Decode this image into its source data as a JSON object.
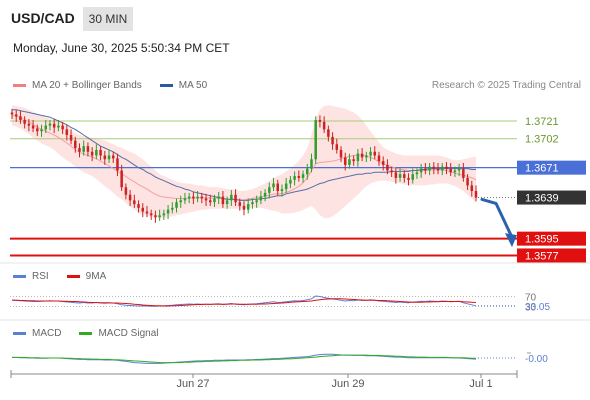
{
  "header": {
    "symbol": "USD/CAD",
    "timeframe": "30 MIN",
    "datetime": "Monday, June 30, 2025 5:50:34 PM CET"
  },
  "legends": {
    "price": [
      {
        "name": "MA 20 + Bollinger Bands",
        "color": "#f08080"
      },
      {
        "name": "MA 50",
        "color": "#2c5aa0"
      }
    ],
    "rsi": [
      {
        "name": "RSI",
        "color": "#5b7fd6"
      },
      {
        "name": "9MA",
        "color": "#dd1111"
      }
    ],
    "macd": [
      {
        "name": "MACD",
        "color": "#5b7fd6"
      },
      {
        "name": "MACD Signal",
        "color": "#33aa22"
      }
    ]
  },
  "credit": "Research © 2025 Trading Central",
  "colors": {
    "up": "#2e9e2e",
    "down": "#cc2222",
    "bollinger_fill": "#fde0de",
    "ma50": "#5570a8",
    "resistance": "#a8cc7a",
    "pivot": "#4a6fd6",
    "support": "#e01010",
    "current_label_bg": "#333333",
    "arrow": "#2a62b0"
  },
  "chart_data": [
    {
      "type": "candlestick",
      "title": "USD/CAD",
      "x_ticks": [
        "Jun 27",
        "Jun 29",
        "Jul 1"
      ],
      "ylim": [
        1.357,
        1.3752
      ],
      "levels": [
        {
          "value": 1.3721,
          "label": "1.3721",
          "kind": "resistance"
        },
        {
          "value": 1.3702,
          "label": "1.3702",
          "kind": "resistance"
        },
        {
          "value": 1.3671,
          "label": "1.3671",
          "kind": "pivot"
        },
        {
          "value": 1.3639,
          "label": "1.3639",
          "kind": "current"
        },
        {
          "value": 1.3595,
          "label": "1.3595",
          "kind": "support"
        },
        {
          "value": 1.3577,
          "label": "1.3577",
          "kind": "support"
        }
      ],
      "forecast_arrow": {
        "from": 1.3637,
        "to": 1.3588
      },
      "close": [
        1.3728,
        1.3726,
        1.3722,
        1.3718,
        1.3716,
        1.3713,
        1.371,
        1.3712,
        1.3716,
        1.3718,
        1.3714,
        1.3716,
        1.3712,
        1.3706,
        1.37,
        1.3692,
        1.3688,
        1.3694,
        1.3688,
        1.3684,
        1.369,
        1.3684,
        1.368,
        1.3684,
        1.3681,
        1.3668,
        1.365,
        1.3642,
        1.3636,
        1.3632,
        1.3628,
        1.3624,
        1.3622,
        1.362,
        1.3618,
        1.362,
        1.3622,
        1.3626,
        1.3628,
        1.3634,
        1.3636,
        1.3638,
        1.364,
        1.3638,
        1.364,
        1.3638,
        1.3636,
        1.3634,
        1.3638,
        1.364,
        1.3632,
        1.3636,
        1.3642,
        1.3634,
        1.363,
        1.3626,
        1.3632,
        1.3634,
        1.3636,
        1.364,
        1.3644,
        1.365,
        1.3654,
        1.3646,
        1.3648,
        1.3654,
        1.3658,
        1.3662,
        1.366,
        1.3664,
        1.367,
        1.368,
        1.3722,
        1.372,
        1.3712,
        1.3704,
        1.3696,
        1.369,
        1.3682,
        1.3674,
        1.368,
        1.3678,
        1.3686,
        1.3682,
        1.3684,
        1.3688,
        1.3684,
        1.3678,
        1.3674,
        1.3668,
        1.3666,
        1.366,
        1.3664,
        1.366,
        1.3658,
        1.3664,
        1.3666,
        1.367,
        1.3668,
        1.3672,
        1.367,
        1.3668,
        1.3672,
        1.367,
        1.3666,
        1.3668,
        1.367,
        1.366,
        1.3652,
        1.3646,
        1.3639
      ],
      "bollinger_upper": [
        1.3738,
        1.3737,
        1.3736,
        1.3735,
        1.3733,
        1.3731,
        1.3729,
        1.3727,
        1.3725,
        1.3723,
        1.3722,
        1.3721,
        1.3719,
        1.3716,
        1.3712,
        1.3708,
        1.3706,
        1.3705,
        1.3704,
        1.3703,
        1.3702,
        1.3701,
        1.37,
        1.3698,
        1.3696,
        1.3694,
        1.3692,
        1.369,
        1.3688,
        1.3686,
        1.3683,
        1.368,
        1.3676,
        1.3672,
        1.3668,
        1.3664,
        1.3662,
        1.366,
        1.3658,
        1.3656,
        1.3655,
        1.3654,
        1.3654,
        1.3653,
        1.3652,
        1.3652,
        1.3651,
        1.365,
        1.365,
        1.365,
        1.3649,
        1.3648,
        1.3648,
        1.3647,
        1.3646,
        1.3646,
        1.3647,
        1.3648,
        1.365,
        1.3652,
        1.3654,
        1.3657,
        1.366,
        1.3662,
        1.3664,
        1.3667,
        1.367,
        1.3674,
        1.3678,
        1.3684,
        1.3692,
        1.3706,
        1.3724,
        1.3733,
        1.3737,
        1.3738,
        1.3737,
        1.3736,
        1.3735,
        1.3734,
        1.3732,
        1.373,
        1.3727,
        1.3722,
        1.3716,
        1.371,
        1.3704,
        1.3698,
        1.3693,
        1.369,
        1.3688,
        1.3686,
        1.3685,
        1.3684,
        1.3684,
        1.3684,
        1.3684,
        1.3684,
        1.3684,
        1.3684,
        1.3684,
        1.3684,
        1.3683,
        1.3682,
        1.368,
        1.3679,
        1.3679,
        1.368,
        1.3681,
        1.3682,
        1.3683
      ],
      "bollinger_lower": [
        1.3716,
        1.3715,
        1.3713,
        1.371,
        1.3707,
        1.3703,
        1.37,
        1.3697,
        1.3695,
        1.3693,
        1.369,
        1.3686,
        1.3682,
        1.3679,
        1.3676,
        1.3672,
        1.3669,
        1.3666,
        1.3664,
        1.3662,
        1.3659,
        1.3655,
        1.3651,
        1.3648,
        1.3644,
        1.364,
        1.3637,
        1.3633,
        1.3629,
        1.3626,
        1.3623,
        1.3621,
        1.362,
        1.3618,
        1.3617,
        1.3617,
        1.3617,
        1.3618,
        1.3619,
        1.362,
        1.3621,
        1.3622,
        1.3623,
        1.3624,
        1.3625,
        1.3626,
        1.3626,
        1.3627,
        1.3627,
        1.3627,
        1.3627,
        1.3627,
        1.3627,
        1.3627,
        1.3627,
        1.3627,
        1.3628,
        1.3628,
        1.3628,
        1.3628,
        1.3627,
        1.3626,
        1.3625,
        1.3624,
        1.3622,
        1.3622,
        1.3622,
        1.3623,
        1.3624,
        1.3626,
        1.3628,
        1.363,
        1.3626,
        1.362,
        1.3617,
        1.3617,
        1.3619,
        1.3622,
        1.3626,
        1.363,
        1.3634,
        1.3638,
        1.3642,
        1.3647,
        1.3651,
        1.3654,
        1.3656,
        1.3657,
        1.3657,
        1.3657,
        1.3656,
        1.3655,
        1.3654,
        1.3653,
        1.3652,
        1.3652,
        1.3652,
        1.3652,
        1.3652,
        1.3653,
        1.3653,
        1.3654,
        1.3654,
        1.3654,
        1.3653,
        1.3651,
        1.3649,
        1.3646,
        1.3642,
        1.3638,
        1.3633
      ],
      "ma50": [
        1.3733,
        1.3733,
        1.3732,
        1.3731,
        1.373,
        1.3729,
        1.3728,
        1.3727,
        1.3726,
        1.3725,
        1.3723,
        1.3721,
        1.3719,
        1.3717,
        1.3714,
        1.3712,
        1.3709,
        1.3706,
        1.3703,
        1.37,
        1.3697,
        1.3694,
        1.3692,
        1.369,
        1.3688,
        1.3685,
        1.3682,
        1.368,
        1.3677,
        1.3674,
        1.3671,
        1.3669,
        1.3666,
        1.3664,
        1.3661,
        1.3659,
        1.3657,
        1.3655,
        1.3653,
        1.3651,
        1.365,
        1.3648,
        1.3647,
        1.3645,
        1.3644,
        1.3643,
        1.3642,
        1.3641,
        1.364,
        1.3639,
        1.3638,
        1.3637,
        1.3637,
        1.3637,
        1.3636,
        1.3636,
        1.3636,
        1.3637,
        1.3637,
        1.3638,
        1.3638,
        1.3639,
        1.364,
        1.3641,
        1.3641,
        1.3643,
        1.3644,
        1.3645,
        1.3646,
        1.3647,
        1.3648,
        1.365,
        1.3652,
        1.3654,
        1.3655,
        1.3657,
        1.3658,
        1.3659,
        1.366,
        1.3661,
        1.3662,
        1.3663,
        1.3664,
        1.3664,
        1.3665,
        1.3665,
        1.3666,
        1.3666,
        1.3666,
        1.3666,
        1.3667,
        1.3667,
        1.3667,
        1.3667,
        1.3667,
        1.3668,
        1.3668,
        1.3669,
        1.3669,
        1.367,
        1.367,
        1.367,
        1.367,
        1.367,
        1.367,
        1.367,
        1.367,
        1.367,
        1.367,
        1.3669,
        1.3669
      ]
    },
    {
      "type": "line",
      "title": "RSI",
      "ylim": [
        0,
        100
      ],
      "levels": [
        70,
        30
      ],
      "level_tick_labels": [
        "70",
        "30"
      ],
      "current_label": "33.05",
      "series": [
        {
          "name": "RSI",
          "values": [
            56,
            55,
            53,
            52,
            51,
            50,
            50,
            51,
            52,
            53,
            52,
            52,
            50,
            48,
            47,
            45,
            44,
            46,
            44,
            44,
            46,
            44,
            43,
            44,
            44,
            41,
            37,
            35,
            34,
            33,
            32,
            32,
            32,
            31,
            31,
            32,
            33,
            34,
            35,
            37,
            38,
            39,
            40,
            39,
            40,
            39,
            39,
            38,
            40,
            41,
            38,
            40,
            42,
            39,
            38,
            37,
            39,
            40,
            41,
            43,
            45,
            47,
            49,
            46,
            47,
            49,
            51,
            53,
            52,
            54,
            57,
            61,
            72,
            70,
            66,
            63,
            60,
            58,
            55,
            52,
            54,
            53,
            56,
            54,
            55,
            57,
            55,
            52,
            51,
            49,
            48,
            46,
            48,
            46,
            45,
            48,
            49,
            51,
            50,
            52,
            51,
            50,
            52,
            51,
            49,
            50,
            51,
            45,
            41,
            37,
            33
          ]
        },
        {
          "name": "9MA",
          "values": [
            55,
            55,
            54,
            54,
            53,
            53,
            52,
            52,
            52,
            52,
            52,
            52,
            51,
            51,
            50,
            50,
            49,
            48,
            47,
            46,
            46,
            45,
            45,
            45,
            44,
            44,
            43,
            42,
            41,
            39,
            38,
            36,
            35,
            34,
            33,
            33,
            32,
            32,
            33,
            33,
            34,
            35,
            36,
            37,
            38,
            38,
            39,
            39,
            39,
            39,
            39,
            39,
            40,
            40,
            39,
            39,
            39,
            39,
            39,
            40,
            40,
            41,
            42,
            43,
            44,
            45,
            47,
            48,
            49,
            50,
            51,
            52,
            55,
            57,
            59,
            60,
            61,
            61,
            61,
            60,
            59,
            58,
            57,
            56,
            55,
            55,
            55,
            54,
            54,
            53,
            52,
            51,
            50,
            49,
            48,
            47,
            47,
            47,
            48,
            48,
            49,
            49,
            50,
            50,
            50,
            50,
            50,
            49,
            48,
            47,
            46
          ]
        }
      ]
    },
    {
      "type": "line",
      "title": "MACD",
      "ylim": [
        -0.0035,
        0.0035
      ],
      "zero_label": "-0.00",
      "series": [
        {
          "name": "MACD",
          "values": [
            0.0002,
            0.0002,
            0.0001,
            0.0001,
            0.0,
            0.0,
            -0.0001,
            -0.0001,
            -0.0001,
            0.0,
            0.0,
            0.0,
            -0.0001,
            -0.0002,
            -0.0003,
            -0.0004,
            -0.0005,
            -0.0005,
            -0.0006,
            -0.0006,
            -0.0006,
            -0.0006,
            -0.0007,
            -0.0007,
            -0.0007,
            -0.0008,
            -0.001,
            -0.0012,
            -0.0014,
            -0.0016,
            -0.0017,
            -0.0018,
            -0.0019,
            -0.0019,
            -0.0019,
            -0.0019,
            -0.0018,
            -0.0017,
            -0.0016,
            -0.0015,
            -0.0014,
            -0.0013,
            -0.0012,
            -0.0011,
            -0.001,
            -0.001,
            -0.0009,
            -0.0009,
            -0.0008,
            -0.0008,
            -0.0008,
            -0.0007,
            -0.0007,
            -0.0007,
            -0.0007,
            -0.0007,
            -0.0006,
            -0.0006,
            -0.0005,
            -0.0005,
            -0.0004,
            -0.0003,
            -0.0002,
            -0.0002,
            -0.0001,
            0.0,
            0.0001,
            0.0002,
            0.0003,
            0.0004,
            0.0005,
            0.0007,
            0.001,
            0.0012,
            0.0013,
            0.0013,
            0.0013,
            0.0012,
            0.0011,
            0.001,
            0.001,
            0.0009,
            0.0009,
            0.0009,
            0.0008,
            0.0008,
            0.0008,
            0.0007,
            0.0006,
            0.0005,
            0.0004,
            0.0003,
            0.0003,
            0.0002,
            0.0001,
            0.0001,
            0.0001,
            0.0001,
            0.0001,
            0.0001,
            0.0001,
            0.0001,
            0.0001,
            0.0001,
            0.0001,
            0.0,
            0.0,
            -0.0001,
            -0.0002,
            -0.0003,
            -0.0004
          ]
        },
        {
          "name": "MACD Signal",
          "values": [
            0.0002,
            0.0002,
            0.0002,
            0.0002,
            0.0001,
            0.0001,
            0.0001,
            0.0,
            0.0,
            0.0,
            0.0,
            0.0,
            0.0,
            -0.0001,
            -0.0001,
            -0.0002,
            -0.0002,
            -0.0003,
            -0.0003,
            -0.0004,
            -0.0004,
            -0.0005,
            -0.0005,
            -0.0005,
            -0.0006,
            -0.0006,
            -0.0007,
            -0.0008,
            -0.0009,
            -0.001,
            -0.0011,
            -0.0012,
            -0.0013,
            -0.0014,
            -0.0015,
            -0.0016,
            -0.0016,
            -0.0016,
            -0.0016,
            -0.0016,
            -0.0016,
            -0.0015,
            -0.0015,
            -0.0014,
            -0.0013,
            -0.0013,
            -0.0012,
            -0.0012,
            -0.0011,
            -0.0011,
            -0.001,
            -0.001,
            -0.0009,
            -0.0009,
            -0.0008,
            -0.0008,
            -0.0008,
            -0.0007,
            -0.0007,
            -0.0007,
            -0.0006,
            -0.0006,
            -0.0005,
            -0.0005,
            -0.0004,
            -0.0003,
            -0.0003,
            -0.0002,
            -0.0001,
            0.0,
            0.0001,
            0.0002,
            0.0003,
            0.0005,
            0.0006,
            0.0007,
            0.0008,
            0.0009,
            0.001,
            0.001,
            0.001,
            0.001,
            0.001,
            0.001,
            0.001,
            0.0009,
            0.0009,
            0.0009,
            0.0008,
            0.0008,
            0.0007,
            0.0006,
            0.0006,
            0.0005,
            0.0004,
            0.0004,
            0.0003,
            0.0003,
            0.0003,
            0.0002,
            0.0002,
            0.0002,
            0.0002,
            0.0002,
            0.0001,
            0.0001,
            0.0001,
            0.0001,
            0.0,
            -0.0001,
            -0.0001
          ]
        }
      ]
    }
  ]
}
